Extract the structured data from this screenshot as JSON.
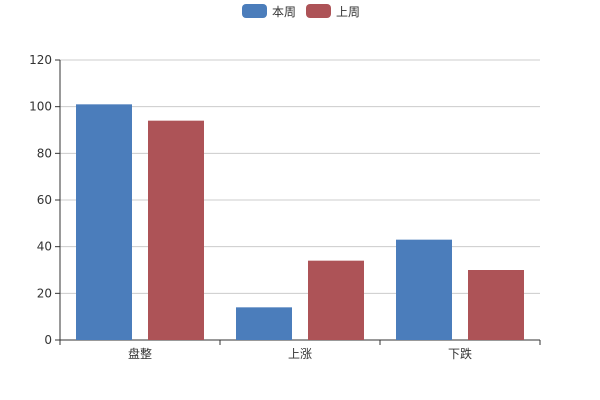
{
  "chart_data": {
    "type": "bar",
    "categories": [
      "盘整",
      "上涨",
      "下跌"
    ],
    "series": [
      {
        "name": "本周",
        "values": [
          101,
          14,
          43
        ],
        "color": "#4b7dbb"
      },
      {
        "name": "上周",
        "values": [
          94,
          34,
          30
        ],
        "color": "#ad5357"
      }
    ],
    "ylim": [
      0,
      120
    ],
    "yticks": [
      0,
      20,
      40,
      60,
      80,
      100,
      120
    ],
    "grid": true,
    "legend_position": "top-center",
    "title": "",
    "xlabel": "",
    "ylabel": ""
  }
}
